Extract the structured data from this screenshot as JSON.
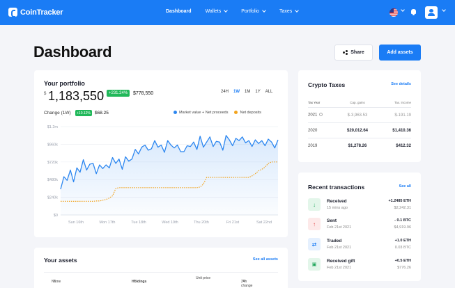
{
  "brand": {
    "name": "CoinTracker"
  },
  "nav": {
    "items": [
      {
        "label": "Dashboard",
        "active": true,
        "dropdown": false
      },
      {
        "label": "Wallets",
        "active": false,
        "dropdown": true
      },
      {
        "label": "Portfolio",
        "active": false,
        "dropdown": true
      },
      {
        "label": "Taxes",
        "active": false,
        "dropdown": true
      }
    ],
    "icons": [
      "us-flag-icon",
      "bell-icon",
      "user-avatar-icon"
    ]
  },
  "header": {
    "title": "Dashboard",
    "share_label": "Share",
    "add_assets_label": "Add assets"
  },
  "portfolio": {
    "title": "Your portfolio",
    "currency_symbol": "$",
    "value": "1,183,550",
    "gain_badge": "+231.24%",
    "gain_value": "$778,550",
    "ranges": [
      "24H",
      "1W",
      "1M",
      "1Y",
      "ALL"
    ],
    "active_range": "1W",
    "change_label": "Change (1W)",
    "change_badge": "+10.12%",
    "change_value": "$68.25",
    "legend": [
      {
        "label": "Market value + Net proceeds",
        "color": "#2b86f0"
      },
      {
        "label": "Net deposits",
        "color": "#f2a31d"
      }
    ]
  },
  "chart_data": {
    "type": "line",
    "title": "",
    "xlabel": "",
    "ylabel": "",
    "ylim": [
      0,
      1200
    ],
    "y_ticks": [
      "$0",
      "$240k",
      "$480k",
      "$720k",
      "$960k",
      "$1.2m"
    ],
    "y_tick_values": [
      0,
      240,
      480,
      720,
      960,
      1200
    ],
    "x_ticks": [
      "Sun 16th",
      "Mon 17th",
      "Tue 18th",
      "Wed 19th",
      "Thu 20th",
      "Fri 21st",
      "Sat 22nd"
    ],
    "grid": true,
    "series": [
      {
        "name": "Market value + Net proceeds",
        "color": "#2b86f0",
        "fill": true,
        "values": [
          350,
          520,
          470,
          610,
          450,
          640,
          580,
          750,
          610,
          690,
          700,
          560,
          680,
          630,
          680,
          640,
          780,
          700,
          760,
          620,
          790,
          730,
          760,
          890,
          830,
          920,
          950,
          880,
          900,
          1010,
          920,
          950,
          850,
          1010,
          950,
          910,
          950,
          860,
          860,
          940,
          930,
          990,
          890,
          1070,
          920,
          990,
          1060,
          930,
          1000,
          990,
          880,
          1080,
          1020,
          940,
          1040,
          1010,
          1060,
          980,
          1010,
          930,
          1020,
          970,
          1010,
          940,
          1030,
          990,
          910,
          1020
        ]
      },
      {
        "name": "Net deposits",
        "color": "#f2a31d",
        "values": [
          185,
          185,
          185,
          185,
          185,
          185,
          185,
          185,
          185,
          185,
          185,
          190,
          190,
          200,
          210,
          230,
          260,
          360,
          370,
          370,
          370,
          370,
          370,
          370,
          370,
          370,
          370,
          370,
          370,
          370,
          370,
          370,
          370,
          370,
          370,
          370,
          370,
          370,
          370,
          370,
          370,
          370,
          370,
          380,
          420,
          510,
          510,
          510,
          510,
          510,
          510,
          510,
          510,
          510,
          510,
          510,
          510,
          510,
          510,
          530,
          560,
          600,
          620,
          650,
          700,
          720,
          720,
          720
        ]
      }
    ]
  },
  "taxes": {
    "title": "Crypto Taxes",
    "link": "See details",
    "columns": [
      "Tax Year",
      "Cap. gains",
      "Tax. income"
    ],
    "rows": [
      {
        "year": "2021",
        "gains": "$-3,963.53",
        "income": "$-191.19",
        "estimate": true
      },
      {
        "year": "2020",
        "gains": "$20,012.64",
        "income": "$1,410.36",
        "estimate": false
      },
      {
        "year": "2019",
        "gains": "$1,278.26",
        "income": "$412.32",
        "estimate": false
      }
    ]
  },
  "recent": {
    "title": "Recent transactions",
    "link": "See all",
    "items": [
      {
        "name": "Received",
        "time": "15 mins ago",
        "amount": "+1.2485 ETH",
        "fiat": "$2,242.31",
        "icon": "arrow-down-icon",
        "icon_color": "#1fa65a",
        "icon_bg": "#e3f6ea",
        "glyph": "↓"
      },
      {
        "name": "Sent",
        "time": "Feb 21st 2021",
        "amount": "- 0.1 BTC",
        "fiat": "$4,919.96",
        "icon": "arrow-up-icon",
        "icon_color": "#e24a4a",
        "icon_bg": "#fde9e9",
        "glyph": "↑"
      },
      {
        "name": "Traded",
        "time": "Feb 21st 2021",
        "amount": "+1.0 ETH",
        "fiat": "0.03 BTC",
        "icon": "swap-arrows-icon",
        "icon_color": "#1a7cf5",
        "icon_bg": "#e5f0fe",
        "glyph": "⇄"
      },
      {
        "name": "Received gift",
        "time": "Feb 21st 2021",
        "amount": "+0.5 ETH",
        "fiat": "$776.26",
        "icon": "gift-icon",
        "icon_color": "#1fa65a",
        "icon_bg": "#e3f6ea",
        "glyph": "▣"
      }
    ]
  },
  "assets": {
    "title": "Your assets",
    "link": "See all assets",
    "columns": [
      {
        "label": "Name",
        "sort": true,
        "bold": false
      },
      {
        "label": "Holdings",
        "sort": true,
        "bold": true
      },
      {
        "label": "Unit price",
        "sort": false,
        "bold": false
      },
      {
        "label": "24h change",
        "sort": true,
        "bold": false
      }
    ]
  }
}
